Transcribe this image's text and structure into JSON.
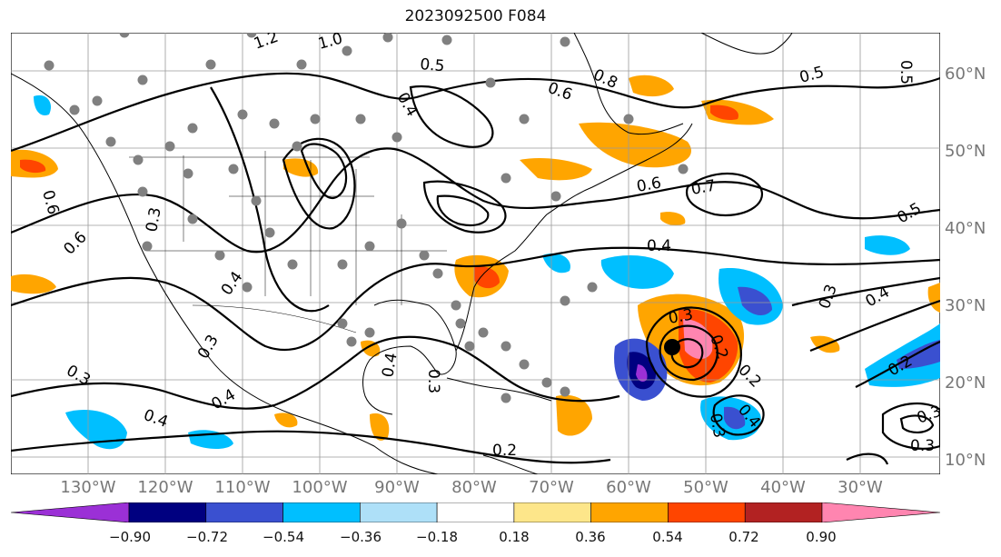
{
  "title": "2023092500 F084",
  "map": {
    "projection": "cylindrical",
    "lon_range": [
      -138,
      -18
    ],
    "lat_range": [
      7,
      64
    ],
    "lat_ticks": [
      "10°N",
      "20°N",
      "30°N",
      "40°N",
      "50°N",
      "60°N"
    ],
    "lon_ticks": [
      "130°W",
      "120°W",
      "110°W",
      "100°W",
      "90°W",
      "80°W",
      "70°W",
      "60°W",
      "50°W",
      "40°W",
      "30°W"
    ],
    "grid": true,
    "contour_labels": [
      "1.2",
      "1.0",
      "0.5",
      "0.8",
      "0.6",
      "0.5",
      "0.4",
      "0.6",
      "0.6",
      "0.3",
      "0.4",
      "0.3",
      "0.3",
      "0.4",
      "0.4",
      "0.4",
      "0.3",
      "0.2",
      "0.3",
      "0.2",
      "0.3",
      "0.4",
      "0.5",
      "0.7",
      "0.2",
      "0.3",
      "0.4",
      "0.3",
      "0.5",
      "0.6",
      "0.3",
      "0.2",
      "0.4"
    ],
    "storm_marker": "black-dot"
  },
  "colorbar": {
    "ticks": [
      "−0.90",
      "−0.72",
      "−0.54",
      "−0.36",
      "−0.18",
      "0.18",
      "0.36",
      "0.54",
      "0.72",
      "0.90"
    ],
    "colors": [
      "#9b30d6",
      "#000080",
      "#3a50d0",
      "#00bfff",
      "#aee0f8",
      "#ffffff",
      "#fde68a",
      "#ffa500",
      "#ff4500",
      "#b22222",
      "#ff85b0"
    ]
  }
}
